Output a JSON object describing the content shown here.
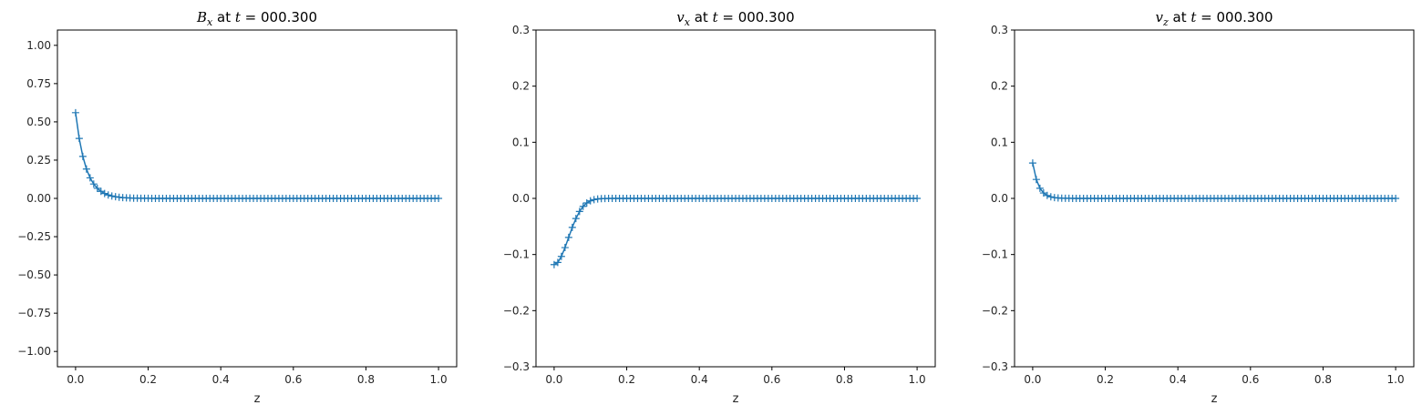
{
  "chart_data": [
    {
      "type": "line",
      "title": {
        "var": "B",
        "sub": "x",
        "mid": " at ",
        "tvar": "t",
        "eq": " = 000.300"
      },
      "xlabel": "z",
      "ylabel": "",
      "xlim": [
        -0.05,
        1.05
      ],
      "ylim": [
        -1.1,
        1.1
      ],
      "xticks": [
        "0.0",
        "0.2",
        "0.4",
        "0.6",
        "0.8",
        "1.0"
      ],
      "xtick_values": [
        0,
        0.2,
        0.4,
        0.6,
        0.8,
        1.0
      ],
      "yticks": [
        "−1.00",
        "−0.75",
        "−0.50",
        "−0.25",
        "0.00",
        "0.25",
        "0.50",
        "0.75",
        "1.00"
      ],
      "ytick_values": [
        -1.0,
        -0.75,
        -0.5,
        -0.25,
        0.0,
        0.25,
        0.5,
        0.75,
        1.0
      ],
      "grid": false,
      "marker": "+",
      "series": [
        {
          "model": "exp",
          "amplitude": 0.56,
          "decay_length": 0.028,
          "n_points": 101,
          "x_start": 0,
          "x_end": 1
        }
      ]
    },
    {
      "type": "line",
      "title": {
        "var": "v",
        "sub": "x",
        "mid": " at ",
        "tvar": "t",
        "eq": " = 000.300"
      },
      "xlabel": "z",
      "ylabel": "",
      "xlim": [
        -0.05,
        1.05
      ],
      "ylim": [
        -0.3,
        0.3
      ],
      "xticks": [
        "0.0",
        "0.2",
        "0.4",
        "0.6",
        "0.8",
        "1.0"
      ],
      "xtick_values": [
        0,
        0.2,
        0.4,
        0.6,
        0.8,
        1.0
      ],
      "yticks": [
        "−0.3",
        "−0.2",
        "−0.1",
        "0.0",
        "0.1",
        "0.2",
        "0.3"
      ],
      "ytick_values": [
        -0.3,
        -0.2,
        -0.1,
        0.0,
        0.1,
        0.2,
        0.3
      ],
      "grid": false,
      "marker": "+",
      "series": [
        {
          "model": "gauss",
          "amplitude": -0.118,
          "decay_length": 0.055,
          "n_points": 101,
          "x_start": 0,
          "x_end": 1
        }
      ]
    },
    {
      "type": "line",
      "title": {
        "var": "v",
        "sub": "z",
        "mid": " at ",
        "tvar": "t",
        "eq": " = 000.300"
      },
      "xlabel": "z",
      "ylabel": "",
      "xlim": [
        -0.05,
        1.05
      ],
      "ylim": [
        -0.3,
        0.3
      ],
      "xticks": [
        "0.0",
        "0.2",
        "0.4",
        "0.6",
        "0.8",
        "1.0"
      ],
      "xtick_values": [
        0,
        0.2,
        0.4,
        0.6,
        0.8,
        1.0
      ],
      "yticks": [
        "−0.3",
        "−0.2",
        "−0.1",
        "0.0",
        "0.1",
        "0.2",
        "0.3"
      ],
      "ytick_values": [
        -0.3,
        -0.2,
        -0.1,
        0.0,
        0.1,
        0.2,
        0.3
      ],
      "grid": false,
      "marker": "+",
      "series": [
        {
          "model": "exp",
          "amplitude": 0.063,
          "decay_length": 0.016,
          "n_points": 101,
          "x_start": 0,
          "x_end": 1
        }
      ]
    }
  ],
  "colors": {
    "line": "#1f77b4",
    "axes": "#000000",
    "text": "#262626"
  }
}
